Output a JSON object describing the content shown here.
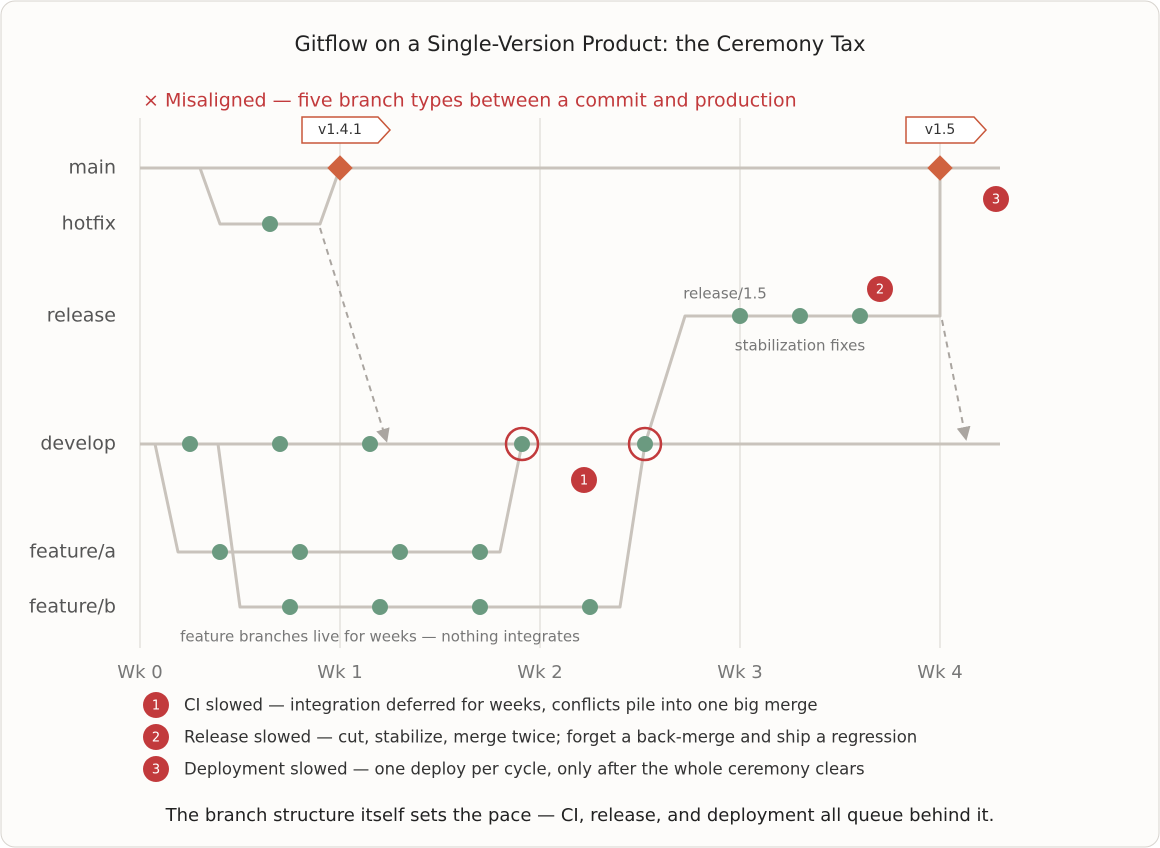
{
  "title": "Gitflow on a Single-Version Product: the Ceremony Tax",
  "subtitle": "× Misaligned — five branch types between a commit and production",
  "lanes": [
    "main",
    "hotfix",
    "release",
    "develop",
    "feature/a",
    "feature/b"
  ],
  "axis": [
    "Wk 0",
    "Wk 1",
    "Wk 2",
    "Wk 3",
    "Wk 4"
  ],
  "tags": [
    "v1.4.1",
    "v1.5"
  ],
  "annotations": {
    "release_label": "release/1.5",
    "release_note": "stabilization fixes",
    "feature_note": "feature branches live for weeks — nothing integrates"
  },
  "markers": [
    "1",
    "2",
    "3"
  ],
  "legend": [
    {
      "marker": "1",
      "text": "CI slowed — integration deferred for weeks, conflicts pile into one big merge"
    },
    {
      "marker": "2",
      "text": "Release slowed — cut, stabilize, merge twice; forget a back-merge and ship a regression"
    },
    {
      "marker": "3",
      "text": "Deployment slowed — one deploy per cycle, only after the whole ceremony clears"
    }
  ],
  "footer": "The branch structure itself sets the pace — CI, release, and deployment all queue behind it."
}
